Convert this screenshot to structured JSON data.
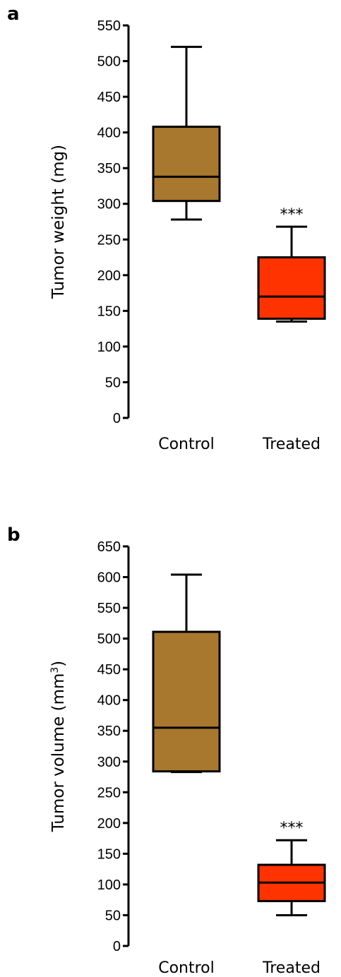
{
  "chart_data": [
    {
      "type": "box",
      "panel_label": "a",
      "ylabel": "Tumor weight (mg)",
      "ylim": [
        0,
        550
      ],
      "yticks": [
        0,
        50,
        100,
        150,
        200,
        250,
        300,
        350,
        400,
        450,
        500,
        550
      ],
      "categories": [
        "Control",
        "Treated"
      ],
      "boxes": [
        {
          "category": "Control",
          "min": 278,
          "q1": 304,
          "median": 338,
          "q3": 408,
          "max": 520,
          "color": "#A8782E"
        },
        {
          "category": "Treated",
          "min": 135,
          "q1": 139,
          "median": 170,
          "q3": 225,
          "max": 268,
          "color": "#FF3300",
          "annotation": "***"
        }
      ]
    },
    {
      "type": "box",
      "panel_label": "b",
      "ylabel": "Tumor volume (mm",
      "ylabel_sup": "3",
      "ylabel_close": ")",
      "ylim": [
        0,
        650
      ],
      "yticks": [
        0,
        50,
        100,
        150,
        200,
        250,
        300,
        350,
        400,
        450,
        500,
        550,
        600,
        650
      ],
      "categories": [
        "Control",
        "Treated"
      ],
      "boxes": [
        {
          "category": "Control",
          "min": 283,
          "q1": 284,
          "median": 355,
          "q3": 511,
          "max": 604,
          "color": "#A8782E"
        },
        {
          "category": "Treated",
          "min": 50,
          "q1": 73,
          "median": 103,
          "q3": 132,
          "max": 172,
          "color": "#FF3300",
          "annotation": "***"
        }
      ]
    }
  ]
}
